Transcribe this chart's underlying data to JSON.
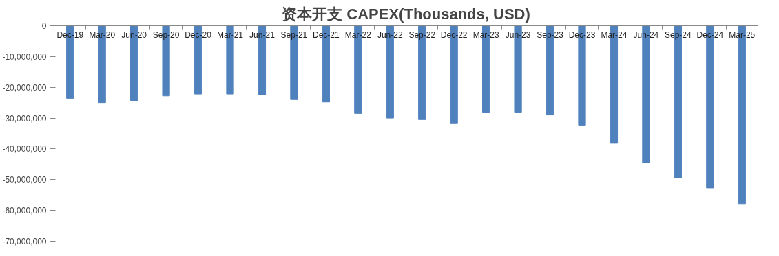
{
  "chart_data": {
    "type": "bar",
    "title": "资本开支 CAPEX(Thousands, USD)",
    "categories": [
      "Dec-19",
      "Mar-20",
      "Jun-20",
      "Sep-20",
      "Dec-20",
      "Mar-21",
      "Jun-21",
      "Sep-21",
      "Dec-21",
      "Mar-22",
      "Jun-22",
      "Sep-22",
      "Dec-22",
      "Mar-23",
      "Jun-23",
      "Sep-23",
      "Dec-23",
      "Mar-24",
      "Jun-24",
      "Sep-24",
      "Dec-24",
      "Mar-25"
    ],
    "values": [
      -23600000,
      -25000000,
      -24300000,
      -22800000,
      -22200000,
      -22200000,
      -22400000,
      -23800000,
      -24800000,
      -28500000,
      -30000000,
      -30500000,
      -31600000,
      -28100000,
      -28100000,
      -29000000,
      -32300000,
      -38200000,
      -44500000,
      -49400000,
      -52700000,
      -57800000
    ],
    "color": "#4f81bd",
    "ylim": [
      -70000000,
      0
    ],
    "yticks": [
      {
        "value": -70000000,
        "label": "-70,000,000"
      },
      {
        "value": -60000000,
        "label": "-60,000,000"
      },
      {
        "value": -50000000,
        "label": "-50,000,000"
      },
      {
        "value": -40000000,
        "label": "-40,000,000"
      },
      {
        "value": -30000000,
        "label": "-30,000,000"
      },
      {
        "value": -20000000,
        "label": "-20,000,000"
      },
      {
        "value": -10000000,
        "label": "-10,000,000"
      },
      0
    ],
    "grid": false
  }
}
